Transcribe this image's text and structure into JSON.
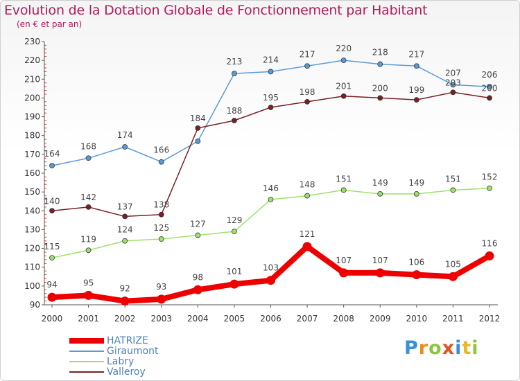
{
  "title": "Evolution de la Dotation Globale de Fonctionnement par Habitant",
  "subtitle": "(en € et par an)",
  "logo": {
    "letters": [
      {
        "ch": "P",
        "color": "#3a8fd8"
      },
      {
        "ch": "r",
        "color": "#f08a1c"
      },
      {
        "ch": "o",
        "color": "#8cc63f"
      },
      {
        "ch": "x",
        "color": "#e8501c"
      },
      {
        "ch": "i",
        "color": "#3a8fd8"
      },
      {
        "ch": "t",
        "color": "#f0b41c"
      },
      {
        "ch": "i",
        "color": "#8cc63f"
      }
    ]
  },
  "chart_data": {
    "type": "line",
    "title": "Evolution de la Dotation Globale de Fonctionnement par Habitant",
    "subtitle": "(en € et par an)",
    "x": [
      "2000",
      "2001",
      "2002",
      "2003",
      "2004",
      "2005",
      "2006",
      "2007",
      "2008",
      "2009",
      "2010",
      "2011",
      "2012"
    ],
    "ylim": [
      90,
      230
    ],
    "yticks": [
      90,
      100,
      110,
      120,
      130,
      140,
      150,
      160,
      170,
      180,
      190,
      200,
      210,
      220,
      230
    ],
    "grid": false,
    "legend": "bottom-left",
    "series": [
      {
        "name": "HATRIZE",
        "color": "#ee0000",
        "values": [
          94,
          95,
          92,
          93,
          98,
          101,
          103,
          121,
          107,
          107,
          106,
          105,
          116
        ]
      },
      {
        "name": "Giraumont",
        "color": "#5b9bd5",
        "values": [
          164,
          168,
          174,
          166,
          177,
          213,
          214,
          217,
          220,
          218,
          217,
          207,
          206
        ]
      },
      {
        "name": "Labry",
        "color": "#9fe06a",
        "values": [
          115,
          119,
          124,
          125,
          127,
          129,
          146,
          148,
          151,
          149,
          149,
          151,
          152
        ]
      },
      {
        "name": "Valleroy",
        "color": "#7a1f24",
        "values": [
          140,
          142,
          137,
          138,
          184,
          188,
          195,
          198,
          201,
          200,
          199,
          203,
          200
        ]
      }
    ],
    "data_labels": [
      [
        "94",
        "95",
        "92",
        "93",
        "98",
        "101",
        "103",
        "121",
        "107",
        "107",
        "106",
        "105",
        "116"
      ],
      [
        "164",
        "168",
        "174",
        "166",
        "",
        "213",
        "214",
        "217",
        "220",
        "218",
        "217",
        "207",
        "206"
      ],
      [
        "115",
        "119",
        "124",
        "125",
        "127",
        "129",
        "146",
        "148",
        "151",
        "149",
        "149",
        "151",
        "152"
      ],
      [
        "140",
        "142",
        "137",
        "138",
        "184",
        "188",
        "195",
        "198",
        "201",
        "200",
        "199",
        "203",
        "200"
      ]
    ]
  }
}
